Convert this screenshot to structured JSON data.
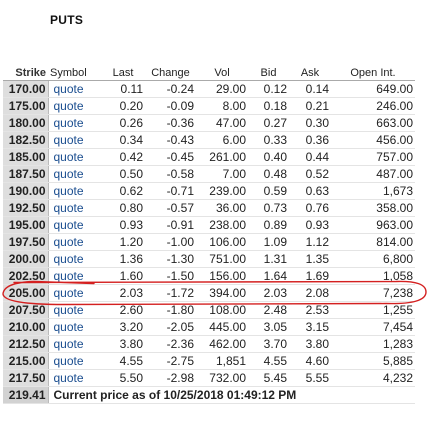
{
  "title": "PUTS",
  "columns": [
    "Strike",
    "Symbol",
    "Last",
    "Change",
    "Vol",
    "Bid",
    "Ask",
    "Open Int."
  ],
  "rows": [
    {
      "strike": "170.00",
      "symbol": "quote",
      "last": "0.11",
      "change": "-0.24",
      "vol": "29.00",
      "bid": "0.12",
      "ask": "0.14",
      "oi": "649.00"
    },
    {
      "strike": "175.00",
      "symbol": "quote",
      "last": "0.20",
      "change": "-0.09",
      "vol": "8.00",
      "bid": "0.18",
      "ask": "0.21",
      "oi": "246.00"
    },
    {
      "strike": "180.00",
      "symbol": "quote",
      "last": "0.26",
      "change": "-0.36",
      "vol": "47.00",
      "bid": "0.27",
      "ask": "0.30",
      "oi": "663.00"
    },
    {
      "strike": "182.50",
      "symbol": "quote",
      "last": "0.34",
      "change": "-0.43",
      "vol": "6.00",
      "bid": "0.33",
      "ask": "0.36",
      "oi": "456.00"
    },
    {
      "strike": "185.00",
      "symbol": "quote",
      "last": "0.42",
      "change": "-0.45",
      "vol": "261.00",
      "bid": "0.40",
      "ask": "0.44",
      "oi": "757.00"
    },
    {
      "strike": "187.50",
      "symbol": "quote",
      "last": "0.50",
      "change": "-0.58",
      "vol": "7.00",
      "bid": "0.48",
      "ask": "0.52",
      "oi": "487.00"
    },
    {
      "strike": "190.00",
      "symbol": "quote",
      "last": "0.62",
      "change": "-0.71",
      "vol": "239.00",
      "bid": "0.59",
      "ask": "0.63",
      "oi": "1,673"
    },
    {
      "strike": "192.50",
      "symbol": "quote",
      "last": "0.80",
      "change": "-0.57",
      "vol": "36.00",
      "bid": "0.73",
      "ask": "0.76",
      "oi": "358.00"
    },
    {
      "strike": "195.00",
      "symbol": "quote",
      "last": "0.93",
      "change": "-0.91",
      "vol": "238.00",
      "bid": "0.89",
      "ask": "0.93",
      "oi": "963.00"
    },
    {
      "strike": "197.50",
      "symbol": "quote",
      "last": "1.20",
      "change": "-1.00",
      "vol": "106.00",
      "bid": "1.09",
      "ask": "1.12",
      "oi": "814.00"
    },
    {
      "strike": "200.00",
      "symbol": "quote",
      "last": "1.36",
      "change": "-1.30",
      "vol": "751.00",
      "bid": "1.31",
      "ask": "1.35",
      "oi": "6,800"
    },
    {
      "strike": "202.50",
      "symbol": "quote",
      "last": "1.60",
      "change": "-1.50",
      "vol": "156.00",
      "bid": "1.64",
      "ask": "1.69",
      "oi": "1,058"
    },
    {
      "strike": "205.00",
      "symbol": "quote",
      "last": "2.03",
      "change": "-1.72",
      "vol": "394.00",
      "bid": "2.03",
      "ask": "2.08",
      "oi": "7,238"
    },
    {
      "strike": "207.50",
      "symbol": "quote",
      "last": "2.60",
      "change": "-1.80",
      "vol": "108.00",
      "bid": "2.48",
      "ask": "2.53",
      "oi": "1,255"
    },
    {
      "strike": "210.00",
      "symbol": "quote",
      "last": "3.20",
      "change": "-2.05",
      "vol": "445.00",
      "bid": "3.05",
      "ask": "3.15",
      "oi": "7,454"
    },
    {
      "strike": "212.50",
      "symbol": "quote",
      "last": "3.80",
      "change": "-2.36",
      "vol": "462.00",
      "bid": "3.70",
      "ask": "3.80",
      "oi": "1,283"
    },
    {
      "strike": "215.00",
      "symbol": "quote",
      "last": "4.55",
      "change": "-2.75",
      "vol": "1,851",
      "bid": "4.55",
      "ask": "4.60",
      "oi": "5,885"
    },
    {
      "strike": "217.50",
      "symbol": "quote",
      "last": "5.50",
      "change": "-2.98",
      "vol": "732.00",
      "bid": "5.45",
      "ask": "5.55",
      "oi": "4,232"
    }
  ],
  "current_price": {
    "value": "219.41",
    "text": "Current price as of 10/25/2018 01:49:12 PM"
  },
  "highlighted_strike": "205.00",
  "colors": {
    "link": "#1a4d8f",
    "strike_bg": "#dedede",
    "highlight_ink": "#d42020"
  }
}
